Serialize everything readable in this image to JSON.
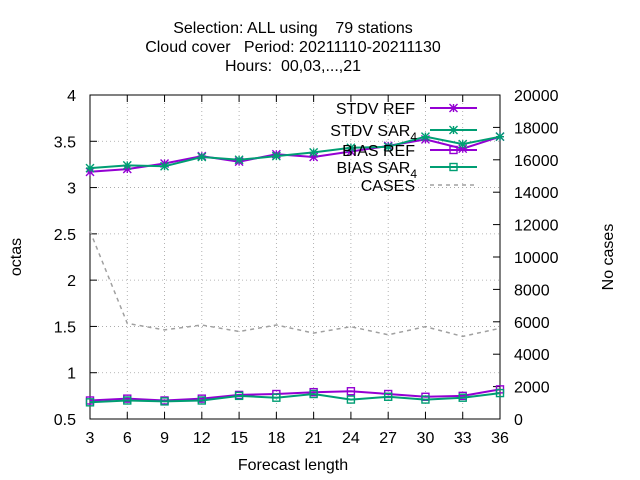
{
  "chart_data": {
    "type": "line",
    "title_lines": [
      "Selection: ALL using    79 stations",
      "Cloud cover   Period: 20211110-20211130",
      "Hours:  00,03,...,21"
    ],
    "xlabel": "Forecast length",
    "ylabel": "octas",
    "y2label": "No cases",
    "x": [
      3,
      6,
      9,
      12,
      15,
      18,
      21,
      24,
      27,
      30,
      33,
      36
    ],
    "xticks": [
      "3",
      "6",
      "9",
      "12",
      "15",
      "18",
      "21",
      "24",
      "27",
      "30",
      "33",
      "36"
    ],
    "xlim": [
      3,
      36
    ],
    "ylim": [
      0.5,
      4
    ],
    "yticks": [
      "0.5",
      "1",
      "1.5",
      "2",
      "2.5",
      "3",
      "3.5",
      "4"
    ],
    "y2lim": [
      0,
      20000
    ],
    "y2ticks": [
      "0",
      "2000",
      "4000",
      "6000",
      "8000",
      "10000",
      "12000",
      "14000",
      "16000",
      "18000",
      "20000"
    ],
    "grid": true,
    "legend_position": "top-right",
    "series": [
      {
        "name": "STDV REF",
        "label": "STDV REF",
        "color": "#9400d3",
        "marker": "star",
        "axis": "y1",
        "values": [
          3.17,
          3.2,
          3.26,
          3.34,
          3.28,
          3.36,
          3.33,
          3.39,
          3.45,
          3.52,
          3.42,
          3.55
        ]
      },
      {
        "name": "STDV SAR_4",
        "label": "STDV SAR",
        "subscript": "4",
        "color": "#009e73",
        "marker": "star",
        "axis": "y1",
        "values": [
          3.21,
          3.24,
          3.23,
          3.33,
          3.3,
          3.34,
          3.38,
          3.43,
          3.44,
          3.55,
          3.47,
          3.55
        ]
      },
      {
        "name": "BIAS REF",
        "label": "BIAS REF",
        "color": "#9400d3",
        "marker": "square",
        "axis": "y1",
        "values": [
          0.7,
          0.72,
          0.7,
          0.72,
          0.76,
          0.77,
          0.79,
          0.8,
          0.77,
          0.74,
          0.75,
          0.82
        ]
      },
      {
        "name": "BIAS SAR_4",
        "label": "BIAS SAR",
        "subscript": "4",
        "color": "#009e73",
        "marker": "square",
        "axis": "y1",
        "values": [
          0.68,
          0.7,
          0.69,
          0.7,
          0.75,
          0.73,
          0.77,
          0.71,
          0.74,
          0.71,
          0.73,
          0.78
        ]
      },
      {
        "name": "CASES",
        "label": "CASES",
        "color": "#a0a0a0",
        "marker": "none",
        "dash": true,
        "axis": "y2",
        "values": [
          11600,
          5900,
          5500,
          5800,
          5400,
          5800,
          5300,
          5700,
          5200,
          5700,
          5100,
          5600
        ]
      }
    ]
  }
}
